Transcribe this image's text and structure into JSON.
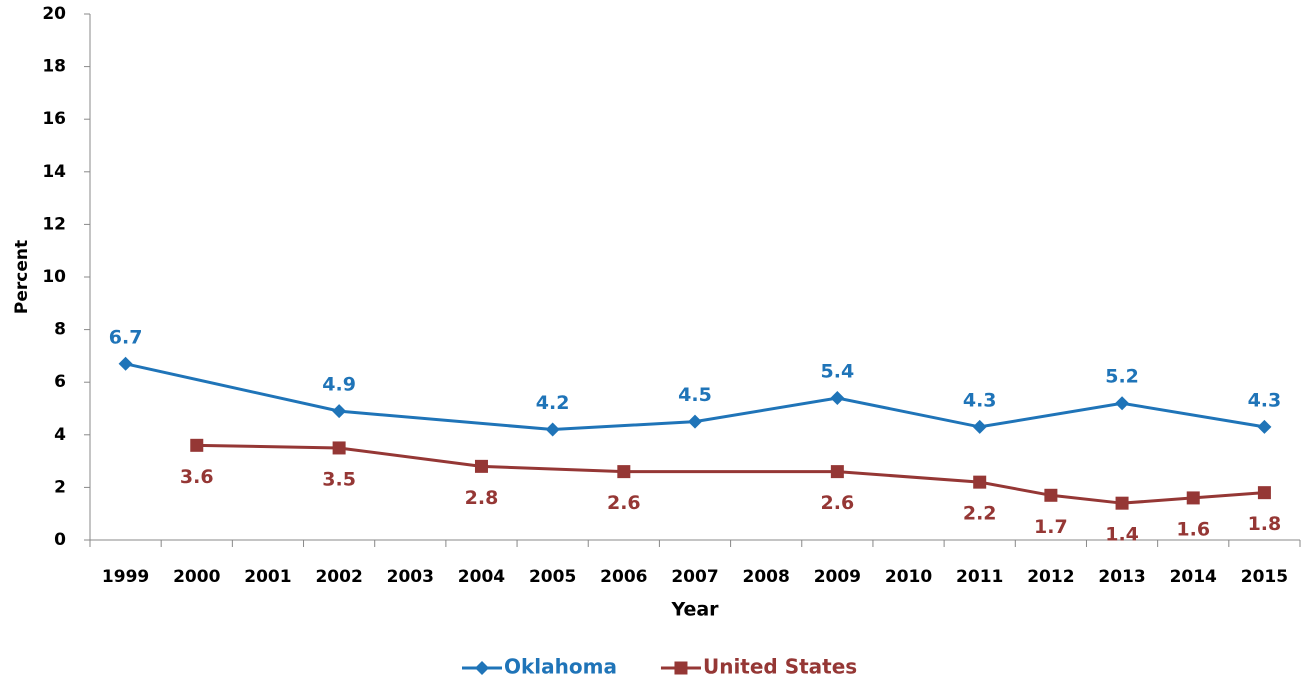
{
  "chart_data": {
    "type": "line",
    "x_label": "Year",
    "y_label": "Percent",
    "categories": [
      "1999",
      "2000",
      "2001",
      "2002",
      "2003",
      "2004",
      "2005",
      "2006",
      "2007",
      "2008",
      "2009",
      "2010",
      "2011",
      "2012",
      "2013",
      "2014",
      "2015"
    ],
    "series": [
      {
        "name": "Oklahoma",
        "color": "#1f74b8",
        "marker": "diamond",
        "label_position": "above",
        "x": [
          "1999",
          "2002",
          "2005",
          "2007",
          "2009",
          "2011",
          "2013",
          "2015"
        ],
        "values": [
          6.7,
          4.9,
          4.2,
          4.5,
          5.4,
          4.3,
          5.2,
          4.3
        ]
      },
      {
        "name": "United States",
        "color": "#953735",
        "marker": "square",
        "label_position": "below",
        "x": [
          "2000",
          "2002",
          "2004",
          "2006",
          "2009",
          "2011",
          "2012",
          "2013",
          "2014",
          "2015"
        ],
        "values": [
          3.6,
          3.5,
          2.8,
          2.6,
          2.6,
          2.2,
          1.7,
          1.4,
          1.6,
          1.8
        ]
      }
    ],
    "ylim": [
      0,
      20
    ],
    "yticks": [
      0,
      2,
      4,
      6,
      8,
      10,
      12,
      14,
      16,
      18,
      20
    ],
    "grid": false,
    "legend": "bottom"
  }
}
